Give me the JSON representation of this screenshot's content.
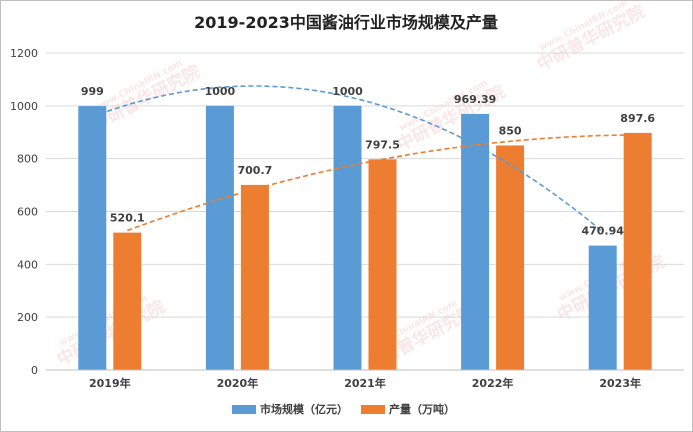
{
  "chart_data": {
    "type": "bar",
    "title": "2019-2023中国酱油行业市场规模及产量",
    "categories": [
      "2019年",
      "2020年",
      "2021年",
      "2022年",
      "2023年"
    ],
    "series": [
      {
        "name": "市场规模（亿元）",
        "values": [
          999,
          1000,
          1000,
          969.39,
          470.94
        ],
        "labels": [
          "999",
          "1000",
          "1000",
          "969.39",
          "470.94"
        ],
        "color": "#5B9BD5",
        "trendline": "polynomial"
      },
      {
        "name": "产量（万吨）",
        "values": [
          520.1,
          700.7,
          797.5,
          850,
          897.6
        ],
        "labels": [
          "520.1",
          "700.7",
          "797.5",
          "850",
          "897.6"
        ],
        "color": "#ED7D31",
        "trendline": "polynomial"
      }
    ],
    "ylim": [
      0,
      1200
    ],
    "yticks": [
      "0",
      "200",
      "400",
      "600",
      "800",
      "1000",
      "1200"
    ],
    "grid": true,
    "legend_position": "bottom"
  },
  "watermark": {
    "main": "中研普华研究院",
    "sub": "www.ChinaIRN.com"
  }
}
